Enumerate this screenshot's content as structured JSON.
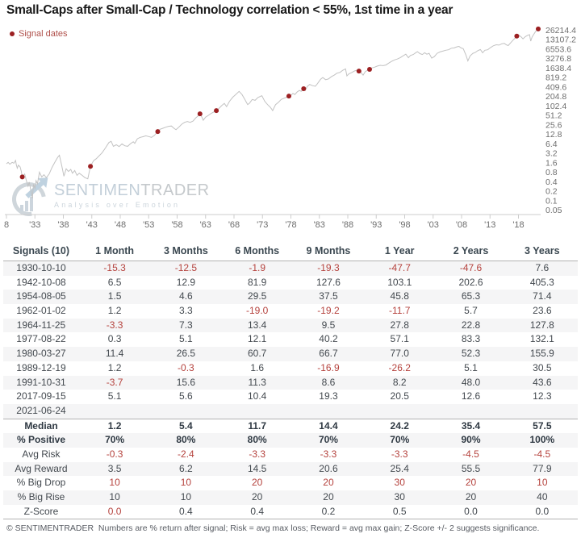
{
  "header": {
    "title": "Small-Caps after Small-Cap / Technology correlation < 55%, 1st time in a year"
  },
  "legend": {
    "label": "Signal dates",
    "text_color": "#b0504b",
    "dot_color": "#9c2022"
  },
  "watermark": {
    "brand_left": "SENTIMEN",
    "brand_right": "TRADER",
    "tagline": "Analysis over Emotion"
  },
  "colors": {
    "line": "#c2c2c2",
    "signal_dot": "#9c2022",
    "axis_text": "#6e6e6e",
    "axis_line": "#cccccc",
    "negative": "#b5423d"
  },
  "chart_data": {
    "type": "line",
    "title": "Small-Caps after Small-Cap / Technology correlation < 55%, 1st time in a year",
    "xlabel": "",
    "ylabel": "",
    "y_scale": "log2",
    "ylim": [
      0.05,
      26214.4
    ],
    "xlim": [
      1928,
      2022
    ],
    "grid": false,
    "legend_position": "top-left",
    "legend_entries": [
      "Signal dates"
    ],
    "y_ticks": [
      "26214.4",
      "13107.2",
      "6553.6",
      "3276.8",
      "1638.4",
      "819.2",
      "409.6",
      "204.8",
      "102.4",
      "51.2",
      "25.6",
      "12.8",
      "6.4",
      "3.2",
      "1.6",
      "0.8",
      "0.4",
      "0.2",
      "0.1",
      "0.05"
    ],
    "x_ticks": [
      {
        "label": "8",
        "year": 1928
      },
      {
        "label": "'33",
        "year": 1933
      },
      {
        "label": "'38",
        "year": 1938
      },
      {
        "label": "'43",
        "year": 1943
      },
      {
        "label": "'48",
        "year": 1948
      },
      {
        "label": "'53",
        "year": 1953
      },
      {
        "label": "'58",
        "year": 1958
      },
      {
        "label": "'63",
        "year": 1963
      },
      {
        "label": "'68",
        "year": 1968
      },
      {
        "label": "'73",
        "year": 1973
      },
      {
        "label": "'78",
        "year": 1978
      },
      {
        "label": "'83",
        "year": 1983
      },
      {
        "label": "'88",
        "year": 1988
      },
      {
        "label": "'93",
        "year": 1993
      },
      {
        "label": "'98",
        "year": 1998
      },
      {
        "label": "'03",
        "year": 2003
      },
      {
        "label": "'08",
        "year": 2008
      },
      {
        "label": "'13",
        "year": 2013
      },
      {
        "label": "'18",
        "year": 2018
      }
    ],
    "signals": [
      {
        "date": "1930-10-10",
        "year": 1930.78,
        "value": 0.55
      },
      {
        "date": "1942-10-08",
        "year": 1942.77,
        "value": 1.2
      },
      {
        "date": "1954-08-05",
        "year": 1954.6,
        "value": 15.3
      },
      {
        "date": "1962-01-02",
        "year": 1962.01,
        "value": 56
      },
      {
        "date": "1964-11-25",
        "year": 1964.9,
        "value": 71
      },
      {
        "date": "1977-08-22",
        "year": 1977.64,
        "value": 206
      },
      {
        "date": "1980-03-27",
        "year": 1980.24,
        "value": 351
      },
      {
        "date": "1989-12-19",
        "year": 1989.96,
        "value": 1285
      },
      {
        "date": "1991-10-31",
        "year": 1991.83,
        "value": 1450
      },
      {
        "date": "2017-09-15",
        "year": 2017.7,
        "value": 16500
      },
      {
        "date": "2021-06-24",
        "year": 2021.48,
        "value": 27900
      }
    ],
    "series": [
      [
        1928.0,
        1.45
      ],
      [
        1928.3,
        1.6
      ],
      [
        1928.6,
        1.4
      ],
      [
        1929.0,
        1.6
      ],
      [
        1929.3,
        1.5
      ],
      [
        1929.6,
        1.85
      ],
      [
        1929.75,
        1.3
      ],
      [
        1929.9,
        1.05
      ],
      [
        1930.1,
        1.3
      ],
      [
        1930.4,
        1.15
      ],
      [
        1930.6,
        0.85
      ],
      [
        1930.78,
        0.55
      ],
      [
        1931.0,
        0.62
      ],
      [
        1931.2,
        0.68
      ],
      [
        1931.5,
        0.42
      ],
      [
        1931.8,
        0.28
      ],
      [
        1932.0,
        0.38
      ],
      [
        1932.3,
        0.2
      ],
      [
        1932.55,
        0.115
      ],
      [
        1932.75,
        0.32
      ],
      [
        1933.0,
        0.24
      ],
      [
        1933.2,
        0.42
      ],
      [
        1933.45,
        0.33
      ],
      [
        1933.8,
        0.78
      ],
      [
        1934.2,
        0.55
      ],
      [
        1934.6,
        0.65
      ],
      [
        1935.0,
        0.52
      ],
      [
        1935.5,
        0.68
      ],
      [
        1936.0,
        1.1
      ],
      [
        1936.5,
        1.6
      ],
      [
        1937.0,
        2.3
      ],
      [
        1937.3,
        2.7
      ],
      [
        1937.7,
        1.3
      ],
      [
        1938.1,
        0.58
      ],
      [
        1938.5,
        1.0
      ],
      [
        1938.9,
        0.82
      ],
      [
        1939.3,
        0.95
      ],
      [
        1939.6,
        0.72
      ],
      [
        1940.0,
        0.88
      ],
      [
        1940.4,
        0.62
      ],
      [
        1940.8,
        0.72
      ],
      [
        1941.3,
        0.62
      ],
      [
        1941.8,
        0.52
      ],
      [
        1942.3,
        0.48
      ],
      [
        1942.77,
        1.2
      ],
      [
        1943.3,
        1.8
      ],
      [
        1943.8,
        2.1
      ],
      [
        1944.3,
        2.6
      ],
      [
        1944.8,
        3.2
      ],
      [
        1945.4,
        4.6
      ],
      [
        1946.0,
        6.8
      ],
      [
        1946.4,
        7.5
      ],
      [
        1946.8,
        5.2
      ],
      [
        1947.3,
        5.8
      ],
      [
        1947.8,
        5.1
      ],
      [
        1948.3,
        6.2
      ],
      [
        1948.8,
        5.4
      ],
      [
        1949.3,
        5.2
      ],
      [
        1949.8,
        6.3
      ],
      [
        1950.3,
        7.2
      ],
      [
        1950.55,
        6.4
      ],
      [
        1951.0,
        9.0
      ],
      [
        1951.5,
        10.0
      ],
      [
        1952.0,
        10.5
      ],
      [
        1952.5,
        11.2
      ],
      [
        1953.0,
        10.6
      ],
      [
        1953.5,
        10.0
      ],
      [
        1954.0,
        11.5
      ],
      [
        1954.6,
        15.3
      ],
      [
        1955.0,
        18.0
      ],
      [
        1955.5,
        19.5
      ],
      [
        1956.0,
        21.0
      ],
      [
        1956.5,
        22.5
      ],
      [
        1957.0,
        23.0
      ],
      [
        1957.5,
        19.0
      ],
      [
        1957.8,
        17.5
      ],
      [
        1958.3,
        21.0
      ],
      [
        1958.8,
        26.0
      ],
      [
        1959.3,
        30.0
      ],
      [
        1959.8,
        32.0
      ],
      [
        1960.3,
        30.0
      ],
      [
        1960.8,
        33.0
      ],
      [
        1961.3,
        42.0
      ],
      [
        1961.8,
        50.0
      ],
      [
        1962.01,
        56.0
      ],
      [
        1962.35,
        44.0
      ],
      [
        1962.6,
        35.0
      ],
      [
        1963.0,
        44.0
      ],
      [
        1963.5,
        50.0
      ],
      [
        1964.0,
        58.0
      ],
      [
        1964.9,
        71.0
      ],
      [
        1965.4,
        85.0
      ],
      [
        1965.9,
        105.0
      ],
      [
        1966.3,
        120.0
      ],
      [
        1966.7,
        95.0
      ],
      [
        1967.2,
        140.0
      ],
      [
        1967.8,
        190.0
      ],
      [
        1968.3,
        230.0
      ],
      [
        1968.9,
        290.0
      ],
      [
        1969.4,
        230.0
      ],
      [
        1969.9,
        160.0
      ],
      [
        1970.4,
        110.0
      ],
      [
        1970.7,
        120.0
      ],
      [
        1971.2,
        160.0
      ],
      [
        1971.7,
        150.0
      ],
      [
        1972.2,
        185.0
      ],
      [
        1972.9,
        210.0
      ],
      [
        1973.4,
        140.0
      ],
      [
        1973.9,
        110.0
      ],
      [
        1974.4,
        90.0
      ],
      [
        1974.8,
        71.0
      ],
      [
        1975.3,
        110.0
      ],
      [
        1975.8,
        130.0
      ],
      [
        1976.3,
        160.0
      ],
      [
        1976.8,
        175.0
      ],
      [
        1977.3,
        190.0
      ],
      [
        1977.64,
        206.0
      ],
      [
        1978.0,
        215.0
      ],
      [
        1978.35,
        250.0
      ],
      [
        1978.7,
        230.0
      ],
      [
        1979.1,
        280.0
      ],
      [
        1979.5,
        310.0
      ],
      [
        1979.8,
        290.0
      ],
      [
        1980.1,
        330.0
      ],
      [
        1980.24,
        351.0
      ],
      [
        1980.5,
        310.0
      ],
      [
        1980.9,
        420.0
      ],
      [
        1981.3,
        480.0
      ],
      [
        1981.8,
        440.0
      ],
      [
        1982.3,
        420.0
      ],
      [
        1982.7,
        520.0
      ],
      [
        1983.2,
        700.0
      ],
      [
        1983.6,
        800.0
      ],
      [
        1984.1,
        680.0
      ],
      [
        1984.6,
        720.0
      ],
      [
        1985.1,
        850.0
      ],
      [
        1985.6,
        950.0
      ],
      [
        1986.1,
        1100.0
      ],
      [
        1986.6,
        1150.0
      ],
      [
        1987.1,
        1350.0
      ],
      [
        1987.6,
        1500.0
      ],
      [
        1987.85,
        900.0
      ],
      [
        1988.2,
        1050.0
      ],
      [
        1988.7,
        1150.0
      ],
      [
        1989.2,
        1300.0
      ],
      [
        1989.6,
        1350.0
      ],
      [
        1989.96,
        1285.0
      ],
      [
        1990.3,
        1150.0
      ],
      [
        1990.7,
        950.0
      ],
      [
        1991.1,
        1250.0
      ],
      [
        1991.5,
        1350.0
      ],
      [
        1991.83,
        1450.0
      ],
      [
        1992.2,
        1600.0
      ],
      [
        1992.7,
        1700.0
      ],
      [
        1993.2,
        1850.0
      ],
      [
        1993.7,
        1950.0
      ],
      [
        1994.2,
        1900.0
      ],
      [
        1994.7,
        2000.0
      ],
      [
        1995.2,
        2300.0
      ],
      [
        1995.7,
        2600.0
      ],
      [
        1996.2,
        2900.0
      ],
      [
        1996.7,
        3100.0
      ],
      [
        1997.2,
        3400.0
      ],
      [
        1997.7,
        3900.0
      ],
      [
        1998.2,
        4400.0
      ],
      [
        1998.65,
        3400.0
      ],
      [
        1999.0,
        4000.0
      ],
      [
        1999.5,
        4300.0
      ],
      [
        2000.0,
        5000.0
      ],
      [
        2000.25,
        5300.0
      ],
      [
        2000.7,
        4600.0
      ],
      [
        2001.1,
        4300.0
      ],
      [
        2001.5,
        4900.0
      ],
      [
        2001.9,
        4400.0
      ],
      [
        2002.3,
        4700.0
      ],
      [
        2002.75,
        3300.0
      ],
      [
        2003.2,
        3700.0
      ],
      [
        2003.7,
        4700.0
      ],
      [
        2004.2,
        5200.0
      ],
      [
        2004.7,
        5500.0
      ],
      [
        2005.2,
        5900.0
      ],
      [
        2005.7,
        6100.0
      ],
      [
        2006.2,
        6800.0
      ],
      [
        2006.7,
        7000.0
      ],
      [
        2007.2,
        7600.0
      ],
      [
        2007.55,
        7800.0
      ],
      [
        2007.9,
        7000.0
      ],
      [
        2008.3,
        6600.0
      ],
      [
        2008.75,
        4200.0
      ],
      [
        2009.1,
        2700.0
      ],
      [
        2009.5,
        3900.0
      ],
      [
        2010.0,
        4700.0
      ],
      [
        2010.4,
        5000.0
      ],
      [
        2010.8,
        5600.0
      ],
      [
        2011.3,
        6200.0
      ],
      [
        2011.7,
        4900.0
      ],
      [
        2012.1,
        5900.0
      ],
      [
        2012.6,
        6100.0
      ],
      [
        2013.1,
        7200.0
      ],
      [
        2013.6,
        8200.0
      ],
      [
        2014.1,
        8800.0
      ],
      [
        2014.6,
        8600.0
      ],
      [
        2015.1,
        9500.0
      ],
      [
        2015.5,
        9700.0
      ],
      [
        2015.9,
        8700.0
      ],
      [
        2016.2,
        8300.0
      ],
      [
        2016.6,
        10000.0
      ],
      [
        2017.0,
        12000.0
      ],
      [
        2017.35,
        14000.0
      ],
      [
        2017.7,
        16500.0
      ],
      [
        2018.1,
        17500.0
      ],
      [
        2018.5,
        15500.0
      ],
      [
        2018.8,
        13500.0
      ],
      [
        2019.2,
        16000.0
      ],
      [
        2019.6,
        17500.0
      ],
      [
        2019.95,
        18500.0
      ],
      [
        2020.15,
        11500.0
      ],
      [
        2020.4,
        15500.0
      ],
      [
        2020.7,
        19000.0
      ],
      [
        2021.0,
        23000.0
      ],
      [
        2021.2,
        25500.0
      ],
      [
        2021.35,
        24500.0
      ],
      [
        2021.48,
        27900.0
      ]
    ]
  },
  "table": {
    "headers": [
      "Signals (10)",
      "1 Month",
      "3 Months",
      "6 Months",
      "9 Months",
      "1 Year",
      "2 Years",
      "3 Years"
    ],
    "rows": [
      {
        "label": "1930-10-10",
        "cells": [
          "-15.3",
          "-12.5",
          "-1.9",
          "-19.3",
          "-47.7",
          "-47.6",
          "7.6"
        ],
        "red_cells": [
          0,
          1,
          2,
          3,
          4,
          5
        ],
        "bold": false,
        "sep": false
      },
      {
        "label": "1942-10-08",
        "cells": [
          "6.5",
          "12.9",
          "81.9",
          "127.6",
          "103.1",
          "202.6",
          "405.3"
        ],
        "red_cells": [],
        "bold": false,
        "sep": false
      },
      {
        "label": "1954-08-05",
        "cells": [
          "1.5",
          "4.6",
          "29.5",
          "37.5",
          "45.8",
          "65.3",
          "71.4"
        ],
        "red_cells": [],
        "bold": false,
        "sep": false
      },
      {
        "label": "1962-01-02",
        "cells": [
          "1.2",
          "3.3",
          "-19.0",
          "-19.2",
          "-11.7",
          "5.7",
          "23.6"
        ],
        "red_cells": [
          2,
          3,
          4
        ],
        "bold": false,
        "sep": false
      },
      {
        "label": "1964-11-25",
        "cells": [
          "-3.3",
          "7.3",
          "13.4",
          "9.5",
          "27.8",
          "22.8",
          "127.8"
        ],
        "red_cells": [
          0
        ],
        "bold": false,
        "sep": false
      },
      {
        "label": "1977-08-22",
        "cells": [
          "0.3",
          "5.1",
          "12.1",
          "40.2",
          "57.1",
          "83.3",
          "132.1"
        ],
        "red_cells": [],
        "bold": false,
        "sep": false
      },
      {
        "label": "1980-03-27",
        "cells": [
          "11.4",
          "26.5",
          "60.7",
          "66.7",
          "77.0",
          "52.3",
          "155.9"
        ],
        "red_cells": [],
        "bold": false,
        "sep": false
      },
      {
        "label": "1989-12-19",
        "cells": [
          "1.2",
          "-0.3",
          "1.6",
          "-16.9",
          "-26.2",
          "5.1",
          "30.5"
        ],
        "red_cells": [
          1,
          3,
          4
        ],
        "bold": false,
        "sep": false
      },
      {
        "label": "1991-10-31",
        "cells": [
          "-3.7",
          "15.6",
          "11.3",
          "8.6",
          "8.2",
          "48.0",
          "43.6"
        ],
        "red_cells": [
          0
        ],
        "bold": false,
        "sep": false
      },
      {
        "label": "2017-09-15",
        "cells": [
          "5.1",
          "5.6",
          "10.4",
          "19.3",
          "20.5",
          "12.6",
          "12.3"
        ],
        "red_cells": [],
        "bold": false,
        "sep": false
      },
      {
        "label": "2021-06-24",
        "cells": [
          "",
          "",
          "",
          "",
          "",
          "",
          ""
        ],
        "red_cells": [],
        "bold": false,
        "sep": false
      },
      {
        "label": "Median",
        "cells": [
          "1.2",
          "5.4",
          "11.7",
          "14.4",
          "24.2",
          "35.4",
          "57.5"
        ],
        "red_cells": [],
        "bold": true,
        "sep": true
      },
      {
        "label": "% Positive",
        "cells": [
          "70%",
          "80%",
          "80%",
          "70%",
          "70%",
          "90%",
          "100%"
        ],
        "red_cells": [],
        "bold": true,
        "sep": false
      },
      {
        "label": "Avg Risk",
        "cells": [
          "-0.3",
          "-2.4",
          "-3.3",
          "-3.3",
          "-3.3",
          "-4.5",
          "-4.5"
        ],
        "red_cells": [
          0,
          1,
          2,
          3,
          4,
          5,
          6
        ],
        "bold": false,
        "sep": false
      },
      {
        "label": "Avg Reward",
        "cells": [
          "3.5",
          "6.2",
          "14.5",
          "20.6",
          "25.4",
          "55.5",
          "77.9"
        ],
        "red_cells": [],
        "bold": false,
        "sep": false
      },
      {
        "label": "% Big Drop",
        "cells": [
          "10",
          "10",
          "20",
          "20",
          "30",
          "20",
          "10"
        ],
        "red_cells": [
          0,
          1,
          2,
          3,
          4,
          5,
          6
        ],
        "bold": false,
        "sep": false
      },
      {
        "label": "% Big Rise",
        "cells": [
          "10",
          "10",
          "20",
          "20",
          "30",
          "20",
          "40"
        ],
        "red_cells": [],
        "bold": false,
        "sep": false
      },
      {
        "label": "Z-Score",
        "cells": [
          "0.0",
          "0.4",
          "0.4",
          "0.2",
          "0.5",
          "0.0",
          "0.0"
        ],
        "red_cells": [
          0
        ],
        "bold": false,
        "sep": false
      }
    ]
  },
  "footer": {
    "text": "© SENTIMENTRADER  Numbers are % return after signal; Risk = avg max loss; Reward = avg max gain; Z-Score +/- 2 suggests significance."
  }
}
